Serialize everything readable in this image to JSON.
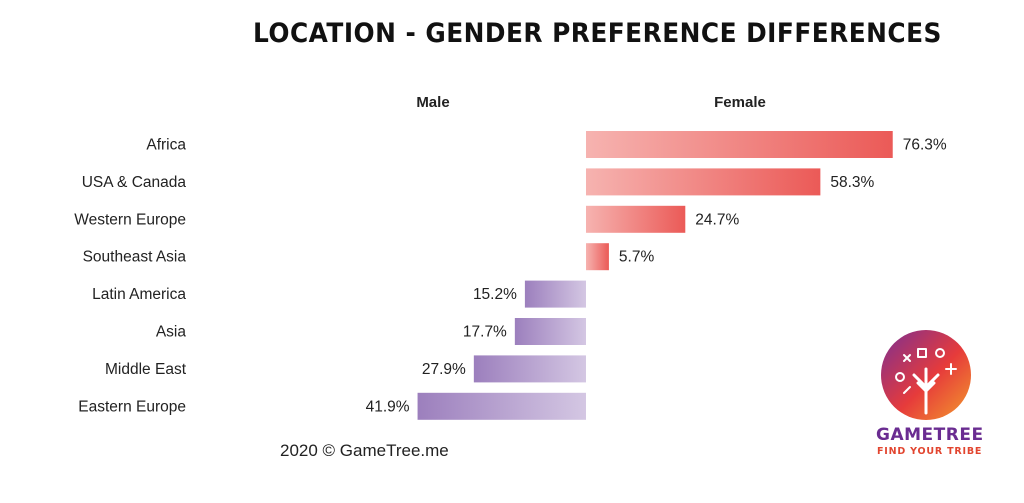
{
  "chart_data": {
    "type": "bar",
    "title": "LOCATION - GENDER PREFERENCE DIFFERENCES",
    "series": [
      {
        "name": "Male",
        "color_start": "#9c7fbd",
        "color_end": "#d4c7e3"
      },
      {
        "name": "Female",
        "color_start": "#f6b3b0",
        "color_end": "#eb5a57"
      }
    ],
    "rows": [
      {
        "category": "Africa",
        "series": "Female",
        "value": 76.3,
        "label": "76.3%"
      },
      {
        "category": "USA & Canada",
        "series": "Female",
        "value": 58.3,
        "label": "58.3%"
      },
      {
        "category": "Western Europe",
        "series": "Female",
        "value": 24.7,
        "label": "24.7%"
      },
      {
        "category": "Southeast Asia",
        "series": "Female",
        "value": 5.7,
        "label": "5.7%"
      },
      {
        "category": "Latin America",
        "series": "Male",
        "value": 15.2,
        "label": "15.2%"
      },
      {
        "category": "Asia",
        "series": "Male",
        "value": 17.7,
        "label": "17.7%"
      },
      {
        "category": "Middle East",
        "series": "Male",
        "value": 27.9,
        "label": "27.9%"
      },
      {
        "category": "Eastern Europe",
        "series": "Male",
        "value": 41.9,
        "label": "41.9%"
      }
    ],
    "legend_placement": "top",
    "grid": false
  },
  "footer": {
    "credit": "2020 © GameTree.me"
  },
  "logo": {
    "name": "GAMETREE",
    "tagline": "FIND YOUR TRIBE",
    "colors": [
      "#7b2f93",
      "#e63b3b",
      "#f39a2c"
    ]
  }
}
